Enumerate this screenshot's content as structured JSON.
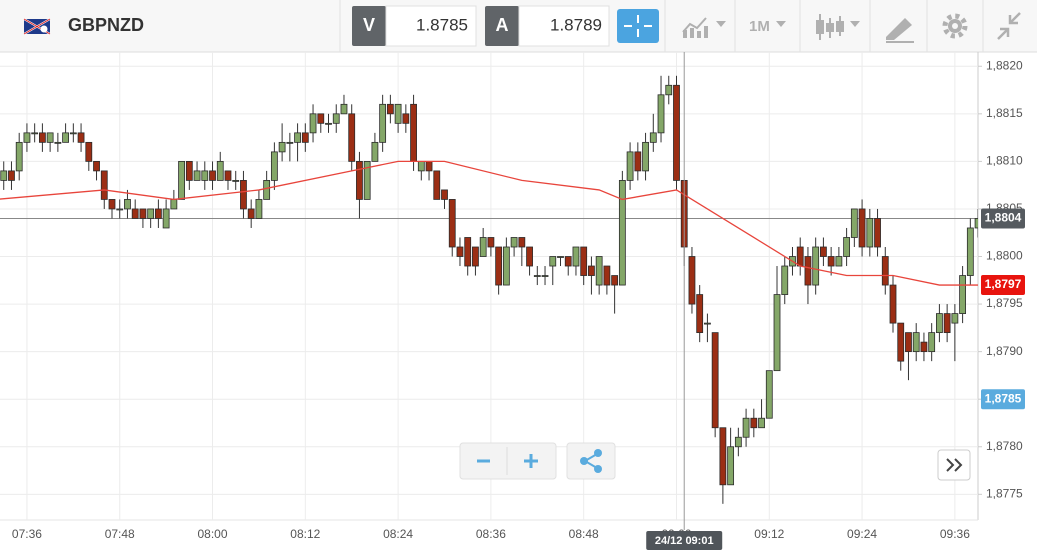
{
  "toolbar": {
    "symbol": "GBPNZD",
    "bid_label": "V",
    "bid": "1.8785",
    "ask_label": "A",
    "ask": "1.8789",
    "interval": "1M"
  },
  "chart_data": {
    "type": "candlestick",
    "x": [
      "07:33",
      "07:34",
      "07:35",
      "07:36",
      "07:37",
      "07:38",
      "07:39",
      "07:40",
      "07:41",
      "07:42",
      "07:43",
      "07:44",
      "07:45",
      "07:46",
      "07:47",
      "07:48",
      "07:49",
      "07:50",
      "07:51",
      "07:52",
      "07:53",
      "07:54",
      "07:55",
      "07:56",
      "07:57",
      "07:58",
      "07:59",
      "08:00",
      "08:01",
      "08:02",
      "08:03",
      "08:04",
      "08:05",
      "08:06",
      "08:07",
      "08:08",
      "08:09",
      "08:10",
      "08:11",
      "08:12",
      "08:13",
      "08:14",
      "08:15",
      "08:16",
      "08:17",
      "08:18",
      "08:19",
      "08:20",
      "08:21",
      "08:22",
      "08:23",
      "08:24",
      "08:25",
      "08:26",
      "08:27",
      "08:28",
      "08:29",
      "08:30",
      "08:31",
      "08:32",
      "08:33",
      "08:34",
      "08:35",
      "08:36",
      "08:37",
      "08:38",
      "08:39",
      "08:40",
      "08:41",
      "08:42",
      "08:43",
      "08:44",
      "08:45",
      "08:46",
      "08:47",
      "08:48",
      "08:49",
      "08:50",
      "08:51",
      "08:52",
      "08:53",
      "08:54",
      "08:55",
      "08:56",
      "08:57",
      "08:58",
      "08:59",
      "09:00",
      "09:01",
      "09:02",
      "09:03",
      "09:04",
      "09:05",
      "09:06",
      "09:07",
      "09:08",
      "09:09",
      "09:10",
      "09:11",
      "09:12",
      "09:13",
      "09:14",
      "09:15",
      "09:16",
      "09:17",
      "09:18",
      "09:19",
      "09:20",
      "09:21",
      "09:22",
      "09:23",
      "09:24",
      "09:25",
      "09:26",
      "09:27",
      "09:28",
      "09:29",
      "09:30",
      "09:31",
      "09:32",
      "09:33",
      "09:34",
      "09:35",
      "09:36",
      "09:37",
      "09:38",
      "09:39"
    ],
    "open": [
      1.8808,
      1.8809,
      1.8809,
      1.8812,
      1.8813,
      1.8813,
      1.8812,
      1.8812,
      1.8812,
      1.8813,
      1.8813,
      1.8812,
      1.881,
      1.8809,
      1.8806,
      1.8805,
      1.8805,
      1.8805,
      1.8805,
      1.8804,
      1.8805,
      1.8803,
      1.8805,
      1.8806,
      1.881,
      1.8808,
      1.8808,
      1.8809,
      1.8808,
      1.8809,
      1.8808,
      1.8808,
      1.8805,
      1.8804,
      1.8806,
      1.8808,
      1.8811,
      1.8812,
      1.8812,
      1.8813,
      1.8813,
      1.8815,
      1.8814,
      1.8814,
      1.8815,
      1.8815,
      1.881,
      1.8806,
      1.881,
      1.8812,
      1.8816,
      1.8814,
      1.8815,
      1.8816,
      1.8809,
      1.881,
      1.8809,
      1.8807,
      1.8806,
      1.8801,
      1.8802,
      1.8801,
      1.88,
      1.8802,
      1.8801,
      1.8797,
      1.8801,
      1.8802,
      1.8801,
      1.8798,
      1.8798,
      1.8799,
      1.88,
      1.88,
      1.8799,
      1.8801,
      1.8799,
      1.8797,
      1.8799,
      1.8798,
      1.8797,
      1.8808,
      1.8811,
      1.8809,
      1.8812,
      1.8813,
      1.8817,
      1.8818,
      1.8808,
      1.88,
      1.8796,
      1.8793,
      1.8792,
      1.8782,
      1.8776,
      1.878,
      1.8781,
      1.8783,
      1.8782,
      1.8783,
      1.8788,
      1.8796,
      1.8799,
      1.8801,
      1.88,
      1.8797,
      1.8801,
      1.88,
      1.8799,
      1.88,
      1.8802,
      1.8805,
      1.8801,
      1.8804,
      1.88,
      1.8797,
      1.8793,
      1.8792,
      1.879,
      1.8791,
      1.879,
      1.8792,
      1.8794,
      1.8793,
      1.8794,
      1.8798,
      1.8803
    ],
    "high": [
      1.881,
      1.881,
      1.8813,
      1.8814,
      1.8814,
      1.8814,
      1.8813,
      1.8813,
      1.8814,
      1.8814,
      1.8814,
      1.8812,
      1.881,
      1.8809,
      1.8806,
      1.8806,
      1.8807,
      1.8806,
      1.8805,
      1.8805,
      1.8806,
      1.8806,
      1.8807,
      1.881,
      1.881,
      1.881,
      1.881,
      1.881,
      1.8811,
      1.8809,
      1.8809,
      1.8809,
      1.8806,
      1.8807,
      1.8809,
      1.8812,
      1.8814,
      1.8813,
      1.8814,
      1.8814,
      1.8816,
      1.8815,
      1.8815,
      1.8816,
      1.8817,
      1.8816,
      1.8811,
      1.881,
      1.8813,
      1.8817,
      1.8817,
      1.8816,
      1.8816,
      1.8817,
      1.881,
      1.881,
      1.8809,
      1.8807,
      1.8806,
      1.8802,
      1.8802,
      1.8801,
      1.8803,
      1.8802,
      1.8801,
      1.8802,
      1.8802,
      1.8802,
      1.8801,
      1.8799,
      1.8799,
      1.88,
      1.88,
      1.88,
      1.8801,
      1.8801,
      1.88,
      1.88,
      1.8799,
      1.8798,
      1.8809,
      1.8812,
      1.8812,
      1.8813,
      1.8815,
      1.8819,
      1.8819,
      1.8819,
      1.8808,
      1.8801,
      1.8797,
      1.8794,
      1.8792,
      1.8782,
      1.8782,
      1.8782,
      1.8784,
      1.8784,
      1.8785,
      1.8788,
      1.8799,
      1.88,
      1.8801,
      1.8802,
      1.8801,
      1.8802,
      1.8802,
      1.8801,
      1.8801,
      1.8803,
      1.8805,
      1.8806,
      1.8805,
      1.8805,
      1.8801,
      1.8798,
      1.8793,
      1.8792,
      1.8793,
      1.8792,
      1.8793,
      1.8795,
      1.8795,
      1.8795,
      1.8799,
      1.8804,
      1.8805
    ],
    "low": [
      1.8807,
      1.8807,
      1.8808,
      1.8811,
      1.8812,
      1.8811,
      1.8811,
      1.8811,
      1.8812,
      1.8812,
      1.8811,
      1.8809,
      1.8808,
      1.8805,
      1.8804,
      1.8804,
      1.8804,
      1.8804,
      1.8803,
      1.8803,
      1.8803,
      1.8803,
      1.8805,
      1.8806,
      1.8807,
      1.8808,
      1.8807,
      1.8807,
      1.8808,
      1.8807,
      1.8807,
      1.8804,
      1.8803,
      1.8804,
      1.8806,
      1.8807,
      1.881,
      1.881,
      1.881,
      1.8811,
      1.8812,
      1.8813,
      1.8813,
      1.8813,
      1.8815,
      1.8809,
      1.8804,
      1.8806,
      1.881,
      1.8811,
      1.8814,
      1.8813,
      1.8813,
      1.8809,
      1.8808,
      1.8808,
      1.8806,
      1.8805,
      1.88,
      1.8799,
      1.8798,
      1.8798,
      1.88,
      1.88,
      1.8796,
      1.8797,
      1.88,
      1.8799,
      1.8798,
      1.8797,
      1.8797,
      1.8797,
      1.8799,
      1.8798,
      1.8798,
      1.8797,
      1.8796,
      1.8796,
      1.8796,
      1.8794,
      1.8797,
      1.8807,
      1.8808,
      1.8808,
      1.8811,
      1.8812,
      1.8816,
      1.8807,
      1.8799,
      1.8794,
      1.8791,
      1.8791,
      1.8781,
      1.8774,
      1.8776,
      1.8779,
      1.878,
      1.8781,
      1.8782,
      1.8783,
      1.8788,
      1.8795,
      1.8798,
      1.8798,
      1.8795,
      1.8796,
      1.8799,
      1.8798,
      1.8799,
      1.8799,
      1.8801,
      1.88,
      1.88,
      1.88,
      1.8796,
      1.8792,
      1.8788,
      1.8787,
      1.8789,
      1.8789,
      1.8789,
      1.8791,
      1.8791,
      1.8789,
      1.8793,
      1.8797,
      1.8802
    ],
    "close": [
      1.8809,
      1.8808,
      1.8812,
      1.8813,
      1.8813,
      1.8812,
      1.8813,
      1.8812,
      1.8813,
      1.8813,
      1.8812,
      1.881,
      1.8809,
      1.8806,
      1.8805,
      1.8805,
      1.8806,
      1.8804,
      1.8804,
      1.8805,
      1.8804,
      1.8805,
      1.8806,
      1.881,
      1.8808,
      1.8809,
      1.8809,
      1.8808,
      1.881,
      1.8808,
      1.8808,
      1.8805,
      1.8804,
      1.8806,
      1.8808,
      1.8811,
      1.8812,
      1.8812,
      1.8813,
      1.8812,
      1.8815,
      1.8814,
      1.8814,
      1.8815,
      1.8816,
      1.881,
      1.8806,
      1.881,
      1.8812,
      1.8816,
      1.8815,
      1.8816,
      1.8814,
      1.881,
      1.881,
      1.8809,
      1.8806,
      1.8806,
      1.8801,
      1.88,
      1.8799,
      1.8799,
      1.8802,
      1.8801,
      1.8797,
      1.8801,
      1.8802,
      1.8801,
      1.8799,
      1.8798,
      1.8798,
      1.88,
      1.88,
      1.8799,
      1.8801,
      1.8798,
      1.8798,
      1.88,
      1.8797,
      1.8797,
      1.8808,
      1.8811,
      1.8809,
      1.8812,
      1.8813,
      1.8817,
      1.8818,
      1.8808,
      1.8801,
      1.8795,
      1.8792,
      1.8793,
      1.8782,
      1.8776,
      1.878,
      1.8781,
      1.8783,
      1.8782,
      1.8783,
      1.8788,
      1.8796,
      1.8799,
      1.88,
      1.8799,
      1.8797,
      1.8801,
      1.88,
      1.8799,
      1.88,
      1.8802,
      1.8805,
      1.8801,
      1.8804,
      1.8801,
      1.8797,
      1.8793,
      1.8789,
      1.879,
      1.8792,
      1.879,
      1.8792,
      1.8794,
      1.8792,
      1.8794,
      1.8798,
      1.8803,
      1.8804
    ],
    "up_color": "#84a768",
    "down_color": "#9b2e14",
    "moving_average": {
      "color": "#e8453c",
      "x": [
        "07:32",
        "07:46",
        "07:55",
        "08:06",
        "08:18",
        "08:24",
        "08:30",
        "08:40",
        "08:50",
        "08:53",
        "09:00",
        "09:04",
        "09:10",
        "09:16",
        "09:22",
        "09:28",
        "09:34",
        "09:40"
      ],
      "values": [
        1.8806,
        1.8807,
        1.8806,
        1.8807,
        1.8809,
        1.881,
        1.881,
        1.8808,
        1.8807,
        1.8806,
        1.8807,
        1.8805,
        1.8802,
        1.8799,
        1.8798,
        1.8798,
        1.8797,
        1.8797
      ]
    },
    "xlim": [
      "07:32",
      "09:40"
    ],
    "xticks": [
      "07:36",
      "07:48",
      "08:00",
      "08:12",
      "08:24",
      "08:36",
      "08:48",
      "09:00",
      "09:12",
      "09:24",
      "09:36"
    ],
    "ylim": [
      1.87723,
      1.88215
    ],
    "yticks": [
      {
        "value": 1.8775,
        "label": "1,8775"
      },
      {
        "value": 1.878,
        "label": "1,8780"
      },
      {
        "value": 1.8785,
        "label": "1,8785"
      },
      {
        "value": 1.879,
        "label": "1,8790"
      },
      {
        "value": 1.8795,
        "label": "1,8795"
      },
      {
        "value": 1.88,
        "label": "1,8800"
      },
      {
        "value": 1.8805,
        "label": "1,8805"
      },
      {
        "value": 1.881,
        "label": "1,8810"
      },
      {
        "value": 1.8815,
        "label": "1,8815"
      },
      {
        "value": 1.882,
        "label": "1,8820"
      }
    ],
    "grid": true,
    "price_markers": [
      {
        "value": 1.8804,
        "label": "1,8804",
        "color": "#555a5f",
        "line": true
      },
      {
        "value": 1.8797,
        "label": "1,8797",
        "color": "#e8140e",
        "line": false
      },
      {
        "value": 1.8785,
        "label": "1,8785",
        "color": "#5aabde",
        "line": false
      }
    ],
    "crosshair": {
      "x": "09:01",
      "label": "24/12 09:01"
    }
  }
}
